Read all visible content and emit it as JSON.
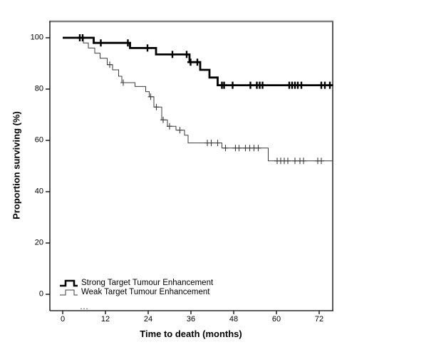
{
  "figure": {
    "background": "#ffffff",
    "frame_colors": {
      "top": "#808080",
      "right": "#5a5a5a",
      "left": "#000000",
      "bottom": "#000000"
    }
  },
  "legend": {
    "items": [
      {
        "label": "Strong Target Tumour Enhancement",
        "style": "thick"
      },
      {
        "label": "Weak Target Tumour Enhancement",
        "style": "thin"
      }
    ]
  },
  "chart_data": {
    "type": "line",
    "subtype": "kaplan-meier-step",
    "title": "",
    "xlabel": "Time to death (months)",
    "ylabel": "Proportion surviving (%)",
    "xticks": [
      0,
      12,
      24,
      36,
      48,
      60,
      72
    ],
    "yticks": [
      0,
      20,
      40,
      60,
      80,
      100
    ],
    "xlim": [
      -3.6,
      75.8
    ],
    "ylim": [
      -6.4,
      106.4
    ],
    "grid": false,
    "legend_position": "bottom-left-inside",
    "series": [
      {
        "name": "Strong Target Tumour Enhancement",
        "color": "#000000",
        "stroke_width": 2.8,
        "steps": [
          [
            0,
            100
          ],
          [
            8.7,
            98
          ],
          [
            18.9,
            96
          ],
          [
            26.2,
            93.5
          ],
          [
            35.6,
            90.5
          ],
          [
            38.6,
            87.5
          ],
          [
            41.2,
            84.5
          ],
          [
            43.5,
            81.5
          ]
        ],
        "end_month": 75.8,
        "censor_months": [
          4.8,
          5.6,
          10.7,
          18.3,
          23.8,
          30.8,
          34.8,
          35.9,
          37.8,
          44.7,
          45.3,
          47.7,
          52.7,
          54.5,
          55.3,
          56.1,
          63.6,
          64.4,
          65.2,
          66.0,
          67.0,
          72.6,
          73.6,
          75.0
        ]
      },
      {
        "name": "Weak Target Tumour Enhancement",
        "color": "#3d3d3d",
        "stroke_width": 1,
        "steps": [
          [
            0,
            100
          ],
          [
            5.8,
            98
          ],
          [
            7.2,
            96
          ],
          [
            9,
            94
          ],
          [
            10.5,
            92
          ],
          [
            12.5,
            89.5
          ],
          [
            14,
            87.5
          ],
          [
            15.7,
            85
          ],
          [
            16.6,
            82.5
          ],
          [
            20.3,
            81
          ],
          [
            23.3,
            79
          ],
          [
            24.3,
            77
          ],
          [
            25.6,
            73
          ],
          [
            27.8,
            68
          ],
          [
            29.4,
            65.5
          ],
          [
            31.8,
            64
          ],
          [
            34.2,
            62
          ],
          [
            35.2,
            59
          ],
          [
            44.7,
            57
          ],
          [
            57.7,
            52
          ]
        ],
        "end_month": 75.8,
        "censor_months": [
          13.2,
          17.0,
          24.7,
          26.3,
          28.2,
          30.0,
          32.9,
          40.6,
          41.7,
          43.5,
          45.7,
          48.5,
          49.5,
          51.3,
          52.5,
          53.7,
          54.9,
          60.2,
          61.2,
          62.2,
          63.2,
          65.2,
          66.6,
          67.6,
          71.6,
          72.6
        ]
      }
    ]
  }
}
